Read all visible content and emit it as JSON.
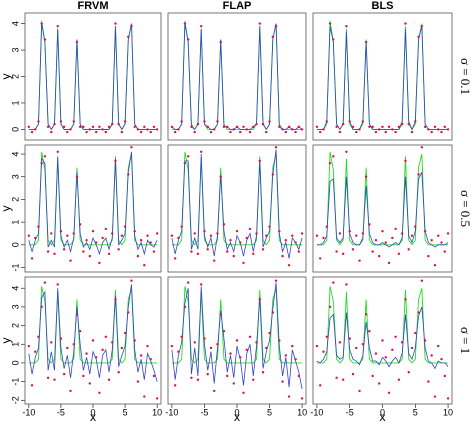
{
  "chart_data": {
    "type": "line",
    "columns": [
      "FRVM",
      "FLAP",
      "BLS"
    ],
    "x_label": "x",
    "y_label": "y",
    "xlim": [
      -10.6,
      10.6
    ],
    "xticks": [
      -10,
      -5,
      0,
      5,
      10
    ],
    "colors": {
      "truth": "#22dd22",
      "fit": "#3344cc",
      "observed": "#dd1144"
    },
    "x": [
      -10,
      -9.5,
      -9,
      -8.5,
      -8,
      -7.5,
      -7,
      -6.5,
      -6,
      -5.5,
      -5,
      -4.5,
      -4,
      -3.5,
      -3,
      -2.5,
      -2,
      -1.5,
      -1,
      -0.5,
      0,
      0.5,
      1,
      1.5,
      2,
      2.5,
      3,
      3.5,
      4,
      4.5,
      5,
      5.5,
      6,
      6.5,
      7,
      7.5,
      8,
      8.5,
      9,
      9.5,
      10
    ],
    "truth": [
      0,
      0,
      0,
      0.2,
      4.1,
      3.3,
      0.2,
      0,
      0.2,
      3.8,
      0.2,
      0,
      0,
      0,
      0.2,
      3.4,
      0.2,
      0,
      0,
      0,
      0,
      0,
      0,
      0,
      0,
      0,
      0.2,
      3.9,
      0.2,
      0,
      0.2,
      3.4,
      4.0,
      0.2,
      0,
      0,
      0,
      0,
      0,
      0,
      0
    ],
    "rows": [
      {
        "label": "σ = 0.1",
        "ylim": [
          -0.4,
          4.4
        ],
        "yticks": [
          0,
          1,
          2,
          3,
          4
        ],
        "observed": [
          0.1,
          -0.1,
          0.0,
          0.3,
          4.0,
          3.4,
          0.1,
          -0.1,
          0.2,
          3.9,
          0.3,
          0.1,
          -0.1,
          0.0,
          0.3,
          3.3,
          0.1,
          0.1,
          -0.1,
          0.0,
          0.1,
          -0.1,
          0.1,
          0.0,
          -0.1,
          0.1,
          0.2,
          4.0,
          0.2,
          -0.1,
          0.3,
          3.5,
          3.9,
          0.1,
          0.0,
          -0.1,
          0.1,
          0.0,
          -0.1,
          0.1,
          0.0
        ]
      },
      {
        "label": "σ = 0.5",
        "ylim": [
          -1.2,
          4.4
        ],
        "yticks": [
          -1,
          0,
          1,
          2,
          3,
          4
        ],
        "observed": [
          0.4,
          -0.6,
          0.3,
          0.8,
          3.6,
          3.9,
          -0.3,
          0.5,
          -0.4,
          4.1,
          0.6,
          -0.2,
          0.4,
          -0.7,
          0.5,
          3.0,
          0.9,
          -0.3,
          0.2,
          -0.5,
          0.6,
          0.1,
          -0.8,
          0.3,
          0.7,
          -0.4,
          0.5,
          3.7,
          -0.2,
          0.4,
          0.8,
          3.1,
          4.3,
          0.6,
          -0.5,
          0.2,
          -0.9,
          0.4,
          0.1,
          -0.3,
          0.5
        ]
      },
      {
        "label": "σ = 1",
        "ylim": [
          -2.2,
          4.6
        ],
        "yticks": [
          -2,
          -1,
          0,
          1,
          2,
          3,
          4
        ],
        "observed": [
          0.9,
          -1.2,
          0.6,
          1.4,
          3.0,
          4.3,
          -0.8,
          1.1,
          -0.9,
          4.2,
          1.3,
          -0.6,
          0.8,
          -1.5,
          1.0,
          2.6,
          1.7,
          -0.7,
          0.5,
          -1.1,
          1.2,
          0.3,
          -1.6,
          0.7,
          1.4,
          -0.9,
          1.1,
          3.4,
          -0.5,
          0.8,
          1.6,
          2.7,
          4.4,
          1.2,
          -1.0,
          0.4,
          -1.8,
          0.9,
          0.2,
          -0.7,
          -1.9
        ]
      }
    ],
    "panels": [
      {
        "row": 0,
        "column": 0,
        "fit": [
          0.0,
          0.0,
          0.0,
          0.2,
          4.0,
          3.3,
          0.2,
          0.0,
          0.2,
          3.8,
          0.2,
          0.0,
          0.0,
          0.0,
          0.2,
          3.4,
          0.2,
          0.0,
          0.0,
          0.0,
          0.0,
          0.0,
          0.0,
          0.0,
          0.0,
          0.0,
          0.2,
          3.9,
          0.2,
          0.0,
          0.2,
          3.4,
          4.0,
          0.2,
          0.0,
          0.0,
          0.0,
          0.0,
          0.0,
          0.0,
          0.0
        ]
      },
      {
        "row": 0,
        "column": 1,
        "fit": [
          0.1,
          0.0,
          0.0,
          0.2,
          4.0,
          3.3,
          0.1,
          0.0,
          0.2,
          3.8,
          0.2,
          0.1,
          0.0,
          0.0,
          0.2,
          3.4,
          0.1,
          0.1,
          0.0,
          0.0,
          0.1,
          0.0,
          0.0,
          0.0,
          0.0,
          0.1,
          0.2,
          3.9,
          0.2,
          0.0,
          0.2,
          3.4,
          4.0,
          0.1,
          0.0,
          0.0,
          0.1,
          0.0,
          0.0,
          0.1,
          0.0
        ]
      },
      {
        "row": 0,
        "column": 2,
        "fit": [
          0.0,
          0.0,
          0.0,
          0.3,
          3.9,
          3.3,
          0.2,
          0.0,
          0.2,
          3.7,
          0.3,
          0.0,
          0.0,
          0.0,
          0.3,
          3.3,
          0.2,
          0.0,
          0.0,
          0.0,
          0.0,
          0.0,
          0.0,
          0.0,
          0.0,
          0.0,
          0.3,
          3.8,
          0.3,
          0.0,
          0.3,
          3.4,
          3.9,
          0.2,
          0.0,
          0.0,
          0.0,
          0.0,
          0.0,
          0.0,
          0.0
        ]
      },
      {
        "row": 1,
        "column": 0,
        "fit": [
          0.2,
          -0.3,
          0.2,
          0.5,
          3.8,
          3.6,
          -0.1,
          0.2,
          -0.1,
          3.9,
          0.4,
          -0.1,
          0.2,
          -0.3,
          0.3,
          3.2,
          0.5,
          -0.1,
          0.1,
          -0.2,
          0.3,
          0.0,
          -0.4,
          0.1,
          0.3,
          -0.2,
          0.3,
          3.8,
          0.0,
          0.2,
          0.5,
          3.2,
          4.1,
          0.4,
          -0.2,
          0.1,
          -0.4,
          0.2,
          0.0,
          -0.1,
          0.2
        ]
      },
      {
        "row": 1,
        "column": 1,
        "fit": [
          0.3,
          -0.4,
          0.2,
          0.6,
          3.7,
          3.7,
          -0.2,
          0.3,
          -0.2,
          4.0,
          0.4,
          -0.1,
          0.3,
          -0.5,
          0.4,
          3.1,
          0.6,
          -0.2,
          0.1,
          -0.3,
          0.4,
          0.1,
          -0.5,
          0.2,
          0.5,
          -0.3,
          0.4,
          3.7,
          -0.1,
          0.3,
          0.6,
          3.1,
          4.2,
          0.5,
          -0.3,
          0.1,
          -0.6,
          0.3,
          0.1,
          -0.2,
          0.3
        ]
      },
      {
        "row": 1,
        "column": 2,
        "fit": [
          0.0,
          0.0,
          0.1,
          0.4,
          2.8,
          2.9,
          0.3,
          0.1,
          0.3,
          3.0,
          0.5,
          0.1,
          0.0,
          0.0,
          0.3,
          2.6,
          0.5,
          0.1,
          0.0,
          0.0,
          0.1,
          0.0,
          -0.1,
          0.0,
          0.1,
          0.0,
          0.3,
          3.0,
          0.4,
          0.1,
          0.6,
          2.9,
          3.2,
          0.6,
          0.1,
          0.0,
          -0.1,
          0.0,
          0.0,
          0.0,
          0.1
        ]
      },
      {
        "row": 2,
        "column": 0,
        "fit": [
          0.5,
          -0.6,
          0.3,
          0.8,
          3.5,
          3.8,
          -0.4,
          0.6,
          -0.4,
          4.0,
          0.8,
          -0.3,
          0.4,
          -0.8,
          0.6,
          3.0,
          1.0,
          -0.4,
          0.3,
          -0.6,
          0.6,
          0.2,
          -0.8,
          0.4,
          0.7,
          -0.5,
          0.7,
          3.6,
          -0.2,
          0.4,
          0.9,
          3.0,
          4.2,
          0.7,
          -0.5,
          0.2,
          -0.9,
          0.5,
          0.1,
          -0.4,
          -1.0
        ]
      },
      {
        "row": 2,
        "column": 1,
        "fit": [
          0.7,
          -0.9,
          0.4,
          1.1,
          3.2,
          4.0,
          -0.6,
          0.8,
          -0.7,
          4.1,
          1.0,
          -0.4,
          0.6,
          -1.1,
          0.8,
          2.8,
          1.3,
          -0.5,
          0.4,
          -0.8,
          0.9,
          0.2,
          -1.2,
          0.5,
          1.0,
          -0.7,
          0.9,
          3.5,
          -0.3,
          0.6,
          1.2,
          2.9,
          4.3,
          0.9,
          -0.7,
          0.3,
          -1.3,
          0.7,
          0.1,
          -0.5,
          -1.4
        ]
      },
      {
        "row": 2,
        "column": 2,
        "fit": [
          0.1,
          0.0,
          0.2,
          0.6,
          2.4,
          2.6,
          0.4,
          0.2,
          0.3,
          2.7,
          0.7,
          0.2,
          0.1,
          -0.1,
          0.4,
          2.2,
          0.8,
          0.1,
          0.1,
          -0.1,
          0.3,
          0.1,
          -0.2,
          0.1,
          0.3,
          0.0,
          0.5,
          2.6,
          0.5,
          0.2,
          0.8,
          2.5,
          3.0,
          0.8,
          0.1,
          0.0,
          -0.3,
          0.1,
          0.0,
          0.0,
          -0.2
        ]
      }
    ]
  }
}
